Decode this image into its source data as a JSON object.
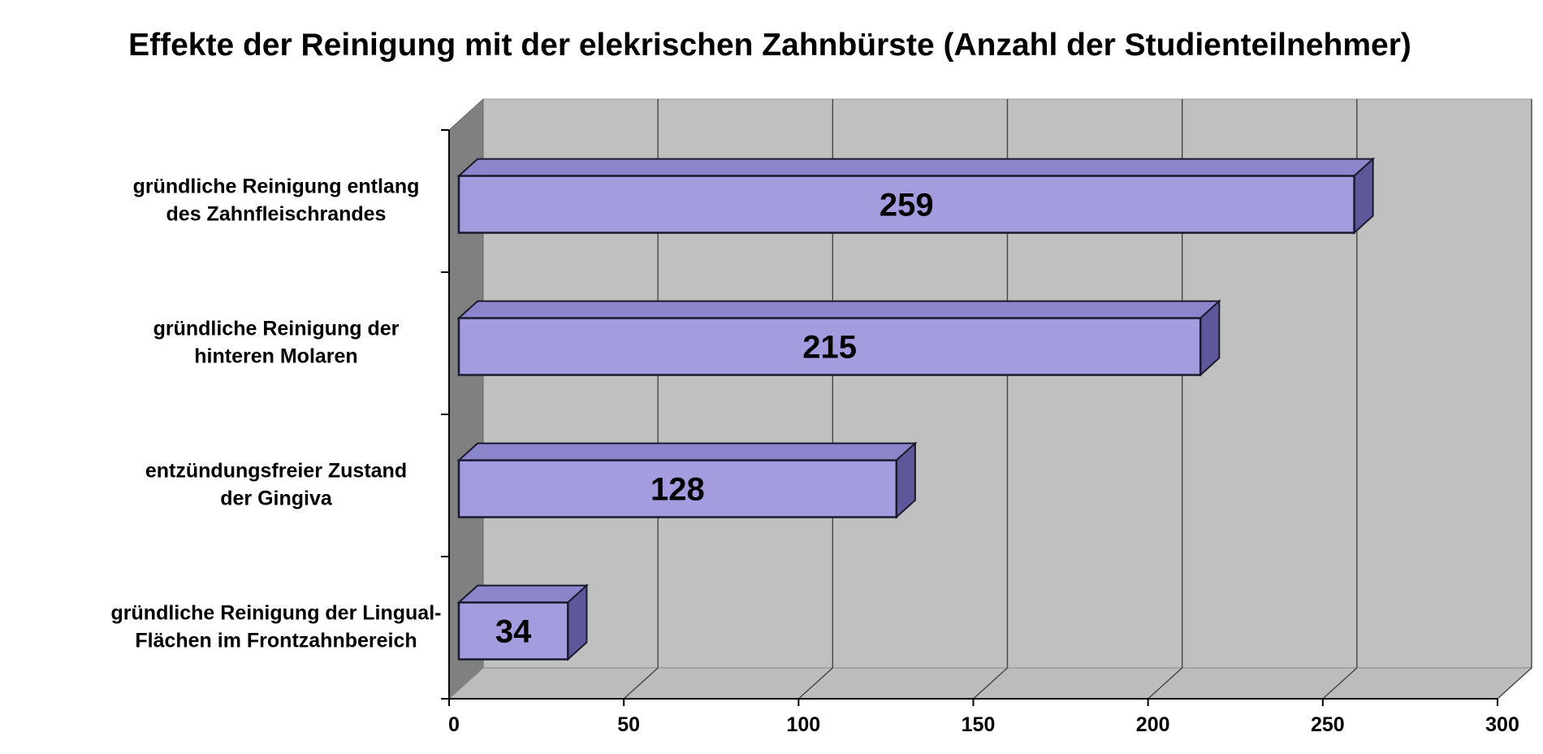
{
  "chart_data": {
    "type": "bar",
    "orientation": "horizontal",
    "style": "3d",
    "title": "Effekte der Reinigung mit der elekrischen Zahnbürste (Anzahl der Studienteilnehmer)",
    "xlabel": "",
    "ylabel": "",
    "categories": [
      [
        "gründliche Reinigung entlang",
        "des Zahnfleischrandes"
      ],
      [
        "gründliche Reinigung der",
        "hinteren Molaren"
      ],
      [
        "entzündungsfreier Zustand",
        "der Gingiva"
      ],
      [
        "gründliche Reinigung der Lingual-",
        "Flächen im Frontzahnbereich"
      ]
    ],
    "values": [
      259,
      215,
      128,
      34
    ],
    "data_labels": [
      "259",
      "215",
      "128",
      "34"
    ],
    "xlim": [
      0,
      300
    ],
    "ticks": [
      0,
      50,
      100,
      150,
      200,
      250,
      300
    ],
    "tick_labels": [
      "0",
      "50",
      "100",
      "150",
      "200",
      "250",
      "300"
    ],
    "grid": true,
    "legend": "none",
    "colors": {
      "bar_front": "#a39ddf",
      "bar_top": "#8b85cc",
      "bar_side": "#5e589a",
      "bar_outline": "#1a1a2e",
      "wall": "#c0c0c0",
      "floor": "#bcbcbc",
      "side_wall": "#808080",
      "grid": "#444444"
    }
  }
}
